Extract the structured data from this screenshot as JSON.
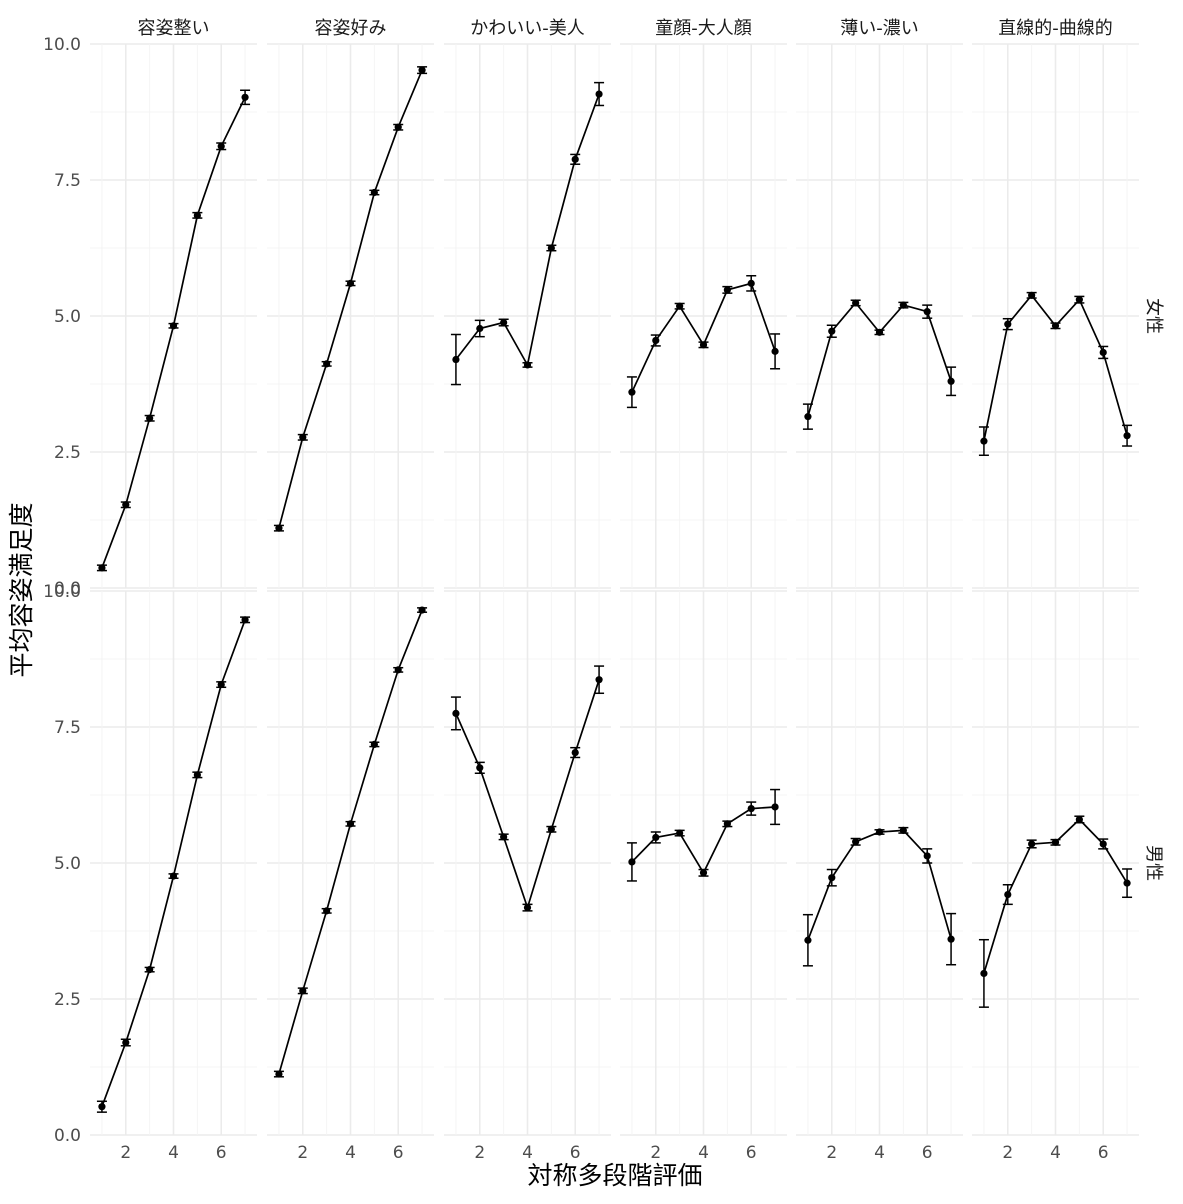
{
  "chart_data": {
    "type": "line",
    "xlabel": "対称多段階評価",
    "ylabel": "平均容姿満足度",
    "ylim": [
      0,
      10
    ],
    "xlim": [
      0.5,
      7.5
    ],
    "x": [
      1,
      2,
      3,
      4,
      5,
      6,
      7
    ],
    "x_ticks": [
      2,
      4,
      6
    ],
    "y_ticks": [
      "0.0",
      "2.5",
      "5.0",
      "7.5",
      "10.0"
    ],
    "grid": true,
    "error_bars": true,
    "column_facets": [
      "容姿整い",
      "容姿好み",
      "かわいい-美人",
      "童顔-大人顔",
      "薄い-濃い",
      "直線的-曲線的"
    ],
    "row_facets": [
      "女性",
      "男性"
    ],
    "panels": [
      {
        "row": "女性",
        "col": "容姿整い",
        "values": [
          0.37,
          1.53,
          3.12,
          4.82,
          6.85,
          8.12,
          9.02
        ],
        "errors": [
          0.05,
          0.05,
          0.05,
          0.04,
          0.05,
          0.06,
          0.13
        ]
      },
      {
        "row": "女性",
        "col": "容姿好み",
        "values": [
          1.1,
          2.77,
          4.12,
          5.6,
          7.27,
          8.47,
          9.52
        ],
        "errors": [
          0.05,
          0.05,
          0.04,
          0.04,
          0.04,
          0.05,
          0.06
        ]
      },
      {
        "row": "女性",
        "col": "かわいい-美人",
        "values": [
          4.2,
          4.77,
          4.88,
          4.1,
          6.25,
          7.88,
          9.08
        ],
        "errors": [
          0.46,
          0.15,
          0.06,
          0.04,
          0.05,
          0.09,
          0.21
        ]
      },
      {
        "row": "女性",
        "col": "童顔-大人顔",
        "values": [
          3.6,
          4.55,
          5.18,
          4.47,
          5.48,
          5.6,
          4.35
        ],
        "errors": [
          0.28,
          0.1,
          0.05,
          0.05,
          0.06,
          0.14,
          0.32
        ]
      },
      {
        "row": "女性",
        "col": "薄い-濃い",
        "values": [
          3.15,
          4.72,
          5.24,
          4.7,
          5.2,
          5.08,
          3.8
        ],
        "errors": [
          0.23,
          0.11,
          0.05,
          0.04,
          0.05,
          0.12,
          0.26
        ]
      },
      {
        "row": "女性",
        "col": "直線的-曲線的",
        "values": [
          2.7,
          4.85,
          5.38,
          4.82,
          5.3,
          4.33,
          2.8
        ],
        "errors": [
          0.26,
          0.1,
          0.05,
          0.05,
          0.06,
          0.11,
          0.19
        ]
      },
      {
        "row": "男性",
        "col": "容姿整い",
        "values": [
          0.52,
          1.7,
          3.04,
          4.76,
          6.62,
          8.28,
          9.47
        ],
        "errors": [
          0.1,
          0.06,
          0.04,
          0.04,
          0.05,
          0.05,
          0.05
        ]
      },
      {
        "row": "男性",
        "col": "容姿好み",
        "values": [
          1.12,
          2.65,
          4.12,
          5.72,
          7.18,
          8.55,
          9.65
        ],
        "errors": [
          0.05,
          0.05,
          0.04,
          0.04,
          0.04,
          0.04,
          0.04
        ]
      },
      {
        "row": "男性",
        "col": "かわいい-美人",
        "values": [
          7.75,
          6.75,
          5.48,
          4.18,
          5.62,
          7.03,
          8.37
        ],
        "errors": [
          0.3,
          0.1,
          0.05,
          0.06,
          0.05,
          0.09,
          0.25
        ]
      },
      {
        "row": "男性",
        "col": "童顔-大人顔",
        "values": [
          5.02,
          5.47,
          5.55,
          4.82,
          5.72,
          6.0,
          6.03
        ],
        "errors": [
          0.35,
          0.1,
          0.05,
          0.06,
          0.05,
          0.12,
          0.32
        ]
      },
      {
        "row": "男性",
        "col": "薄い-濃い",
        "values": [
          3.58,
          4.73,
          5.39,
          5.57,
          5.6,
          5.13,
          3.6
        ],
        "errors": [
          0.47,
          0.15,
          0.06,
          0.04,
          0.05,
          0.13,
          0.47
        ]
      },
      {
        "row": "男性",
        "col": "直線的-曲線的",
        "values": [
          2.97,
          4.42,
          5.35,
          5.38,
          5.8,
          5.35,
          4.63
        ],
        "errors": [
          0.62,
          0.18,
          0.07,
          0.05,
          0.06,
          0.09,
          0.26
        ]
      }
    ]
  }
}
